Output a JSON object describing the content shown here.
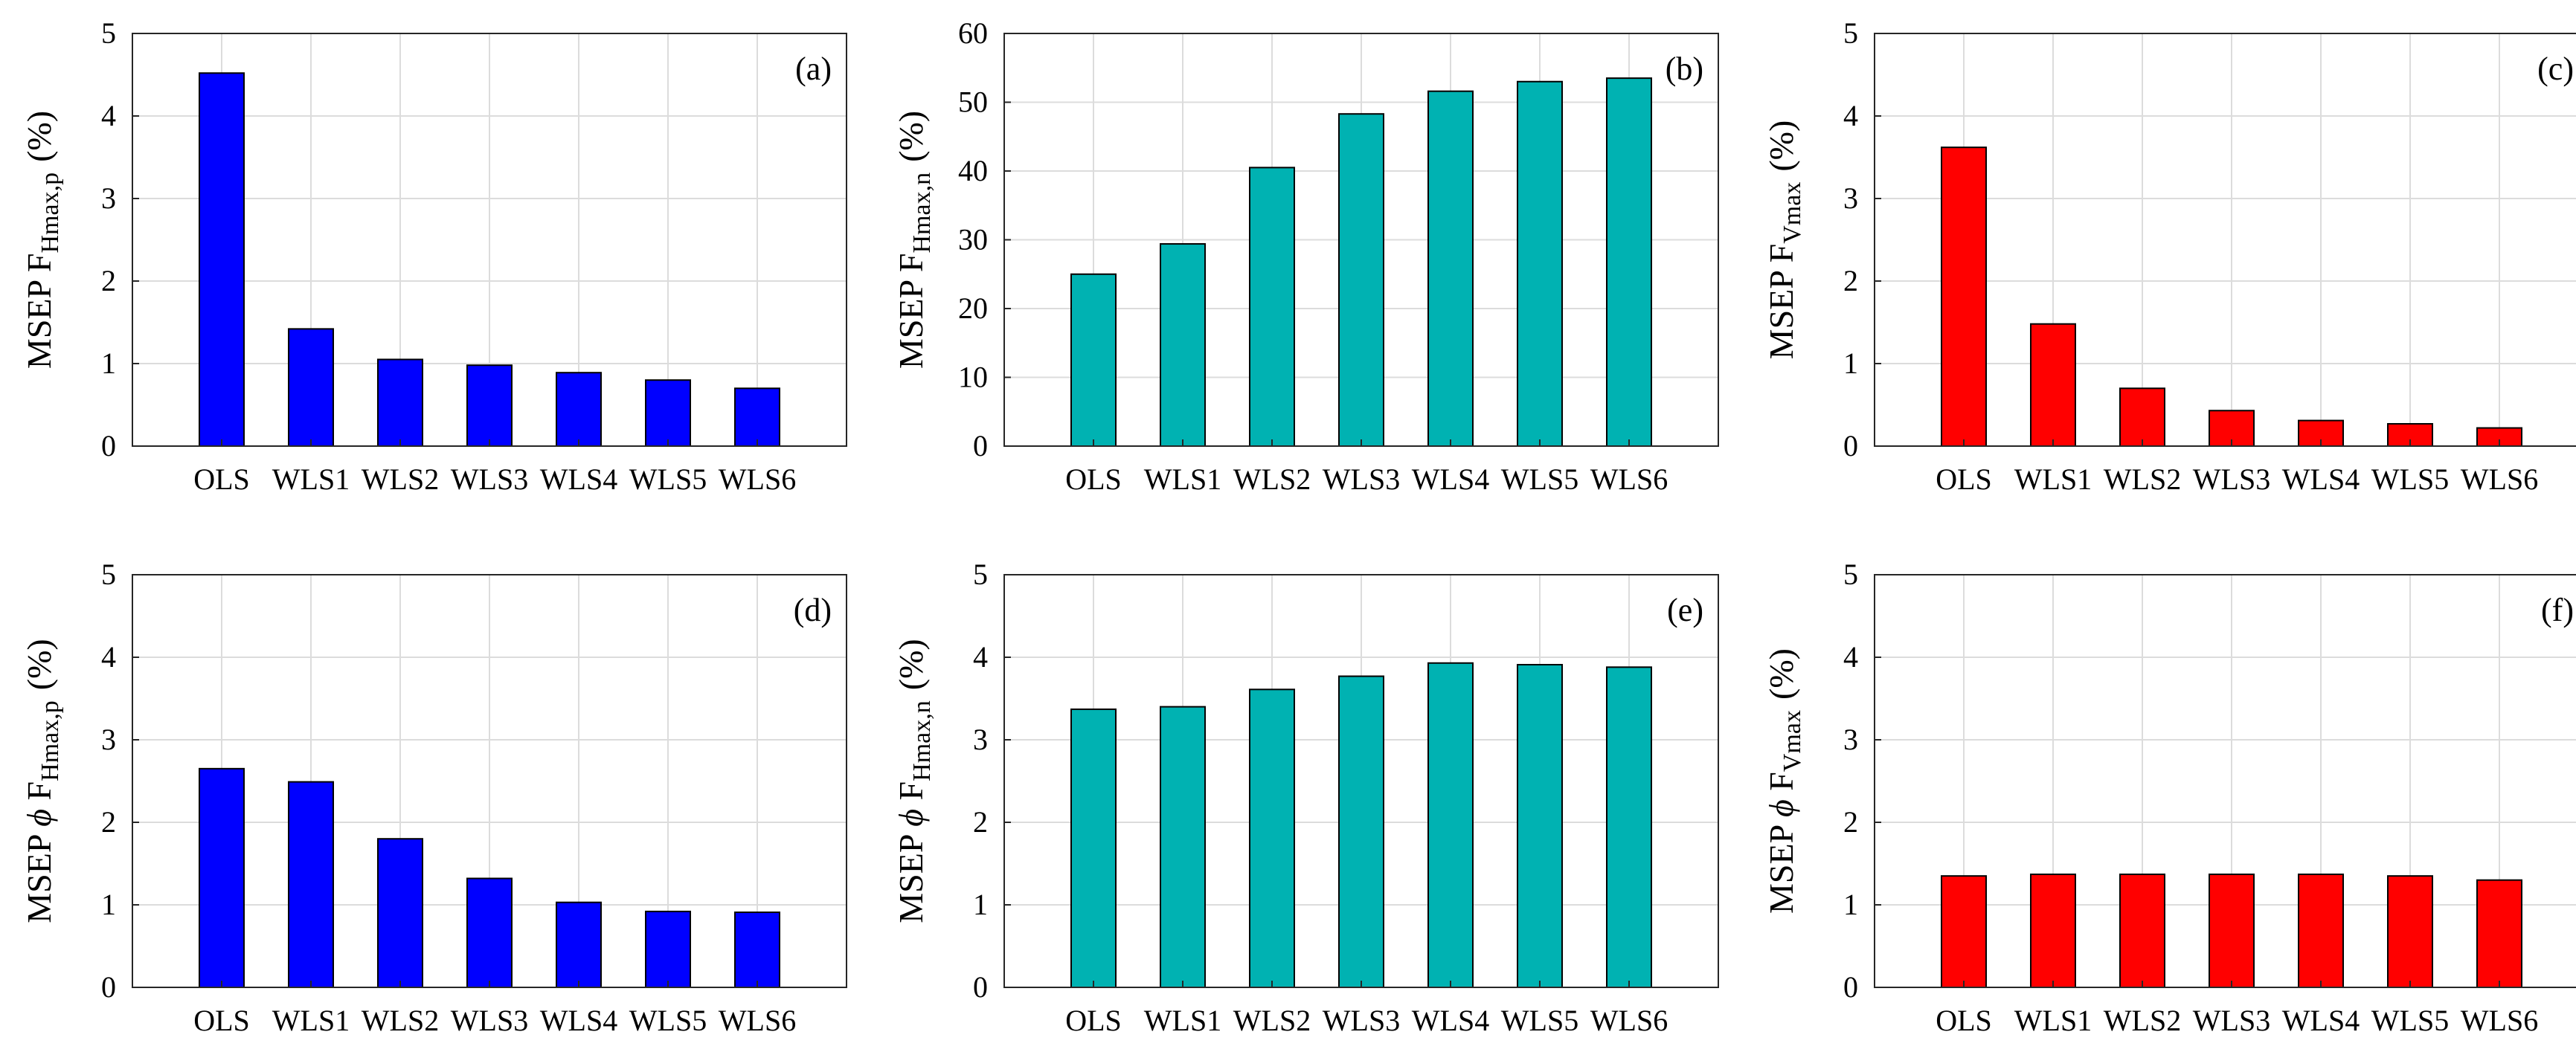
{
  "figure": {
    "panels": [
      {
        "label": "(a)",
        "ylabel": {
          "pre": "MSEP ",
          "phi": "",
          "F": "F",
          "sub": "Hmax,p",
          "unit": "(%)"
        },
        "color": "#0000FF"
      },
      {
        "label": "(b)",
        "ylabel": {
          "pre": "MSEP ",
          "phi": "",
          "F": "F",
          "sub": "Hmax,n",
          "unit": "(%)"
        },
        "color": "#00B2B2"
      },
      {
        "label": "(c)",
        "ylabel": {
          "pre": "MSEP ",
          "phi": "",
          "F": "F",
          "sub": "Vmax",
          "unit": "(%)"
        },
        "color": "#FF0000"
      },
      {
        "label": "(d)",
        "ylabel": {
          "pre": "MSEP ",
          "phi": "ϕ ",
          "F": "F",
          "sub": "Hmax,p",
          "unit": "(%)"
        },
        "color": "#0000FF"
      },
      {
        "label": "(e)",
        "ylabel": {
          "pre": "MSEP ",
          "phi": "ϕ ",
          "F": "F",
          "sub": "Hmax,n",
          "unit": "(%)"
        },
        "color": "#00B2B2"
      },
      {
        "label": "(f)",
        "ylabel": {
          "pre": "MSEP ",
          "phi": "ϕ ",
          "F": "F",
          "sub": "Vmax",
          "unit": "(%)"
        },
        "color": "#FF0000"
      }
    ]
  },
  "chart_data": [
    {
      "type": "bar",
      "title": "(a)",
      "categories": [
        "OLS",
        "WLS1",
        "WLS2",
        "WLS3",
        "WLS4",
        "WLS5",
        "WLS6"
      ],
      "values": [
        4.52,
        1.42,
        1.05,
        0.98,
        0.89,
        0.8,
        0.7
      ],
      "ylabel": "MSEP F_Hmax,p (%)",
      "ylim": [
        0,
        5
      ],
      "yticks": [
        0,
        1,
        2,
        3,
        4,
        5
      ],
      "grid": true
    },
    {
      "type": "bar",
      "title": "(b)",
      "categories": [
        "OLS",
        "WLS1",
        "WLS2",
        "WLS3",
        "WLS4",
        "WLS5",
        "WLS6"
      ],
      "values": [
        25.0,
        29.4,
        40.5,
        48.3,
        51.6,
        53.0,
        53.5
      ],
      "ylabel": "MSEP F_Hmax,n (%)",
      "ylim": [
        0,
        60
      ],
      "yticks": [
        0,
        10,
        20,
        30,
        40,
        50,
        60
      ],
      "grid": true
    },
    {
      "type": "bar",
      "title": "(c)",
      "categories": [
        "OLS",
        "WLS1",
        "WLS2",
        "WLS3",
        "WLS4",
        "WLS5",
        "WLS6"
      ],
      "values": [
        3.62,
        1.48,
        0.7,
        0.43,
        0.31,
        0.27,
        0.22
      ],
      "ylabel": "MSEP F_Vmax (%)",
      "ylim": [
        0,
        5
      ],
      "yticks": [
        0,
        1,
        2,
        3,
        4,
        5
      ],
      "grid": true
    },
    {
      "type": "bar",
      "title": "(d)",
      "categories": [
        "OLS",
        "WLS1",
        "WLS2",
        "WLS3",
        "WLS4",
        "WLS5",
        "WLS6"
      ],
      "values": [
        2.65,
        2.49,
        1.8,
        1.32,
        1.03,
        0.92,
        0.91
      ],
      "ylabel": "MSEP ϕ F_Hmax,p (%)",
      "ylim": [
        0,
        5
      ],
      "yticks": [
        0,
        1,
        2,
        3,
        4,
        5
      ],
      "grid": true
    },
    {
      "type": "bar",
      "title": "(e)",
      "categories": [
        "OLS",
        "WLS1",
        "WLS2",
        "WLS3",
        "WLS4",
        "WLS5",
        "WLS6"
      ],
      "values": [
        3.37,
        3.4,
        3.61,
        3.77,
        3.93,
        3.91,
        3.88
      ],
      "ylabel": "MSEP ϕ F_Hmax,n (%)",
      "ylim": [
        0,
        5
      ],
      "yticks": [
        0,
        1,
        2,
        3,
        4,
        5
      ],
      "grid": true
    },
    {
      "type": "bar",
      "title": "(f)",
      "categories": [
        "OLS",
        "WLS1",
        "WLS2",
        "WLS3",
        "WLS4",
        "WLS5",
        "WLS6"
      ],
      "values": [
        1.35,
        1.37,
        1.37,
        1.37,
        1.37,
        1.35,
        1.3
      ],
      "ylabel": "MSEP ϕ F_Vmax (%)",
      "ylim": [
        0,
        5
      ],
      "yticks": [
        0,
        1,
        2,
        3,
        4,
        5
      ],
      "grid": true
    }
  ]
}
